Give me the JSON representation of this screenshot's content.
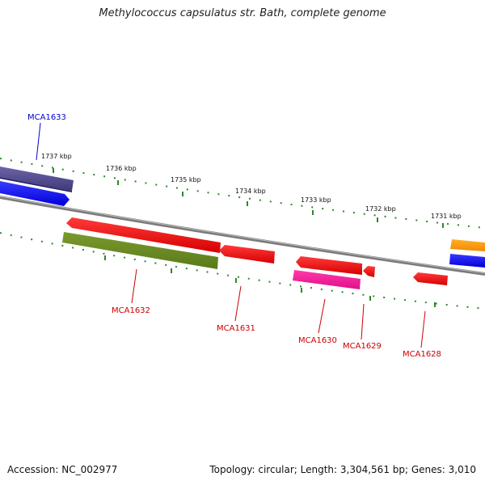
{
  "title": "Methylococcus capsulatus str. Bath, complete genome",
  "footer": {
    "accession": "Accession: NC_002977",
    "stats": "Topology: circular; Length: 3,304,561 bp; Genes: 3,010"
  },
  "scale": {
    "labels": [
      "1737 kbp",
      "1736 kbp",
      "1735 kbp",
      "1734 kbp",
      "1733 kbp",
      "1732 kbp",
      "1731 kbp"
    ]
  },
  "genes": [
    {
      "label": "MCA1633",
      "strand": "+",
      "color": "#0000cc"
    },
    {
      "label": "MCA1632",
      "strand": "-",
      "color": "#cc0000"
    },
    {
      "label": "MCA1631",
      "strand": "-",
      "color": "#cc0000"
    },
    {
      "label": "MCA1630",
      "strand": "-",
      "color": "#cc0000"
    },
    {
      "label": "MCA1629",
      "strand": "-",
      "color": "#cc0000"
    },
    {
      "label": "MCA1628",
      "strand": "-",
      "color": "#cc0000"
    }
  ],
  "colors": {
    "plus_strand": "#0000ff",
    "minus_strand": "#ff0000",
    "scale_ticks": "#2a8a2a",
    "backbone": "#888888"
  }
}
